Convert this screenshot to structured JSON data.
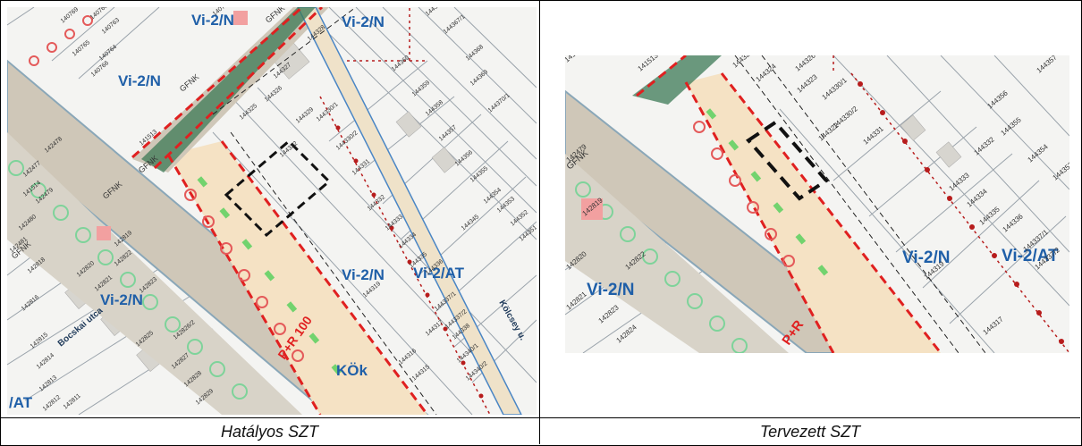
{
  "left": {
    "caption": "Hatályos SZT",
    "zones": [
      "Vi-2/N",
      "Vi-2/N",
      "Vi-2/N",
      "Vi-2/N",
      "Vi-2/N",
      "Vi-2/AT",
      "/AT",
      "KÖk"
    ],
    "labels": {
      "gfnk1": "GFNK",
      "gfnk2": "GFNK",
      "gfnk3": "GFNK",
      "gfnk4": "GFNK",
      "gfnk5": "GFNK",
      "pr": "P+R 100",
      "street1": "Kölcsey u.",
      "street2": "Bocskai utca"
    },
    "parcels": [
      "140769",
      "140768",
      "140765",
      "140764",
      "140763",
      "140766",
      "140729",
      "144360",
      "144359",
      "144358",
      "144328",
      "144327",
      "144326",
      "144325",
      "144329",
      "144330/1",
      "144330/2",
      "144331",
      "144322",
      "144332",
      "144333",
      "144334",
      "144335",
      "144336",
      "144337/1",
      "144337/2",
      "144338",
      "144319",
      "144317",
      "144316",
      "144315",
      "144340/1",
      "144340/2",
      "144345",
      "144357",
      "144356",
      "144355",
      "144354",
      "144353",
      "144352",
      "144351",
      "144369",
      "144368",
      "144367/1",
      "144366/2",
      "144370/1",
      "141514",
      "142477",
      "142478",
      "142479",
      "142480",
      "142481",
      "142818",
      "142819",
      "142820",
      "142821",
      "142822",
      "142823",
      "142825",
      "142826/2",
      "142816",
      "142815",
      "142814",
      "142813",
      "142812",
      "142811",
      "142827",
      "142828",
      "142829",
      "141513"
    ]
  },
  "right": {
    "caption": "Tervezett SZT",
    "zones": [
      "Vi-2/N",
      "Vi-2/N",
      "Vi-2/AT"
    ],
    "labels": {
      "gfnk": "GFNK",
      "pr": "P+R"
    },
    "parcels": [
      "141514",
      "141513",
      "142479",
      "142819",
      "142820",
      "142821",
      "142822",
      "142823",
      "142824",
      "144325",
      "144326",
      "144324",
      "144323",
      "144322",
      "144330/1",
      "144330/2",
      "144331",
      "144332",
      "144333",
      "144334",
      "144335",
      "144336",
      "144337/1",
      "144337/2",
      "144319",
      "144317",
      "144357",
      "144356",
      "144355",
      "144354",
      "144353"
    ]
  },
  "colors": {
    "road": "#cfc7b8",
    "zone_red": "#e02020",
    "zone_text": "#1f5fa8",
    "strip": "#f5e2c4",
    "green": "#1aa54b",
    "pink": "#f2a0a0"
  }
}
